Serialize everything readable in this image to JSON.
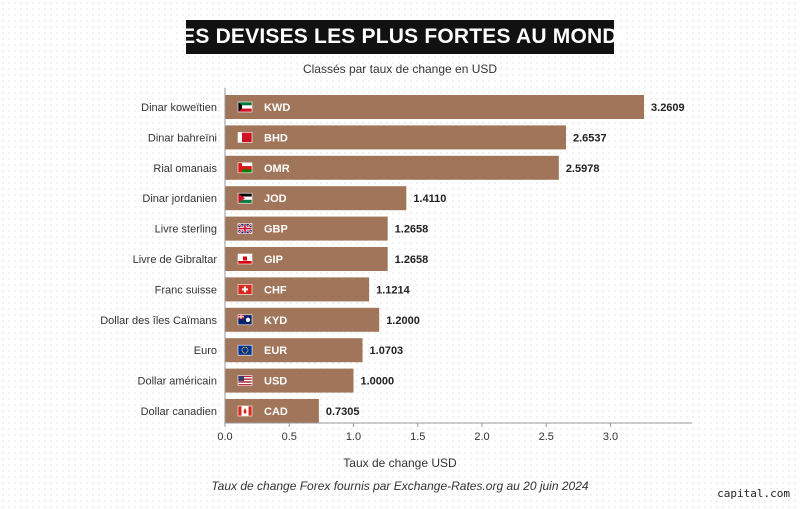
{
  "header": {
    "title": "LES DEVISES LES PLUS FORTES AU MONDE",
    "subtitle": "Classés par taux de change en USD"
  },
  "footer": {
    "note": "Taux de change Forex fournis par Exchange-Rates.org au 20 juin 2024",
    "brand": "capital.com"
  },
  "colors": {
    "bar": "#a0755a",
    "bar_text": "#ffffff",
    "label": "#333333",
    "value": "#222222",
    "axis": "#999999"
  },
  "chart_data": {
    "type": "bar",
    "orientation": "horizontal",
    "title": "LES DEVISES LES PLUS FORTES AU MONDE",
    "subtitle": "Classés par taux de change en USD",
    "xlabel": "Taux de change USD",
    "ylabel": "",
    "xlim": [
      0,
      3.5
    ],
    "xticks": [
      0.0,
      0.5,
      1.0,
      1.5,
      2.0,
      2.5,
      3.0
    ],
    "xtick_labels": [
      "0.0",
      "0.5",
      "1.0",
      "1.5",
      "2.0",
      "2.5",
      "3.0"
    ],
    "grid": false,
    "categories": [
      "Dinar koweïtien",
      "Dinar bahreïni",
      "Rial omanais",
      "Dinar jordanien",
      "Livre sterling",
      "Livre de Gibraltar",
      "Franc suisse",
      "Dollar des îles Caïmans",
      "Euro",
      "Dollar américain",
      "Dollar canadien"
    ],
    "codes": [
      "KWD",
      "BHD",
      "OMR",
      "JOD",
      "GBP",
      "GIP",
      "CHF",
      "KYD",
      "EUR",
      "USD",
      "CAD"
    ],
    "flag_icons": [
      "kuwait-flag-icon",
      "bahrain-flag-icon",
      "oman-flag-icon",
      "jordan-flag-icon",
      "uk-flag-icon",
      "gibraltar-flag-icon",
      "switzerland-flag-icon",
      "cayman-islands-flag-icon",
      "eu-flag-icon",
      "usa-flag-icon",
      "canada-flag-icon"
    ],
    "values": [
      3.2609,
      2.6537,
      2.5978,
      1.411,
      1.2658,
      1.2658,
      1.1214,
      1.2,
      1.0703,
      1.0,
      0.7305
    ],
    "value_labels": [
      "3.2609",
      "2.6537",
      "2.5978",
      "1.4110",
      "1.2658",
      "1.2658",
      "1.1214",
      "1.2000",
      "1.0703",
      "1.0000",
      "0.7305"
    ]
  }
}
